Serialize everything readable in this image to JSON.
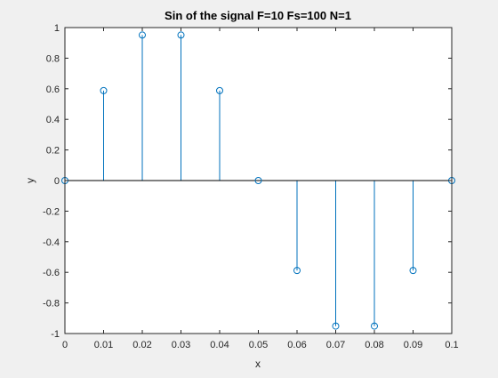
{
  "chart_data": {
    "type": "stem",
    "title": "Sin of the signal F=10 Fs=100 N=1",
    "xlabel": "x",
    "ylabel": "y",
    "xlim": [
      0,
      0.1
    ],
    "ylim": [
      -1,
      1
    ],
    "xticks": [
      0,
      0.01,
      0.02,
      0.03,
      0.04,
      0.05,
      0.06,
      0.07,
      0.08,
      0.09,
      0.1
    ],
    "xtick_labels": [
      "0",
      "0.01",
      "0.02",
      "0.03",
      "0.04",
      "0.05",
      "0.06",
      "0.07",
      "0.08",
      "0.09",
      "0.1"
    ],
    "yticks": [
      -1,
      -0.8,
      -0.6,
      -0.4,
      -0.2,
      0,
      0.2,
      0.4,
      0.6,
      0.8,
      1
    ],
    "ytick_labels": [
      "-1",
      "-0.8",
      "-0.6",
      "-0.4",
      "-0.2",
      "0",
      "0.2",
      "0.4",
      "0.6",
      "0.8",
      "1"
    ],
    "grid": false,
    "baseline": 0,
    "color": "#0072bd",
    "x": [
      0,
      0.01,
      0.02,
      0.03,
      0.04,
      0.05,
      0.06,
      0.07,
      0.08,
      0.09,
      0.1
    ],
    "y": [
      0,
      0.588,
      0.951,
      0.951,
      0.588,
      0,
      -0.588,
      -0.951,
      -0.951,
      -0.588,
      0
    ]
  }
}
